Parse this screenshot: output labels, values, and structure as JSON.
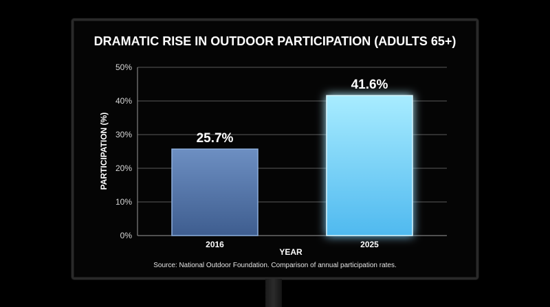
{
  "chart_data": {
    "type": "bar",
    "title": "DRAMATIC RISE IN OUTDOOR PARTICIPATION (ADULTS 65+)",
    "xlabel": "YEAR",
    "ylabel": "PARTICIPATION (%)",
    "categories": [
      "2016",
      "2025"
    ],
    "values": [
      25.7,
      41.6
    ],
    "data_labels": [
      "25.7%",
      "41.6%"
    ],
    "ylim": [
      0,
      50
    ],
    "y_ticks": [
      0,
      10,
      20,
      30,
      40,
      50
    ],
    "y_tick_labels": [
      "0%",
      "10%",
      "20%",
      "30%",
      "40%",
      "50%"
    ],
    "grid": true,
    "source": "Source: National Outdoor Foundation. Comparison of annual participation rates.",
    "colors": {
      "bar_2016": "#5b7fb4",
      "bar_2025": "#7fd8ff",
      "glow": "#3fb8ff"
    }
  }
}
